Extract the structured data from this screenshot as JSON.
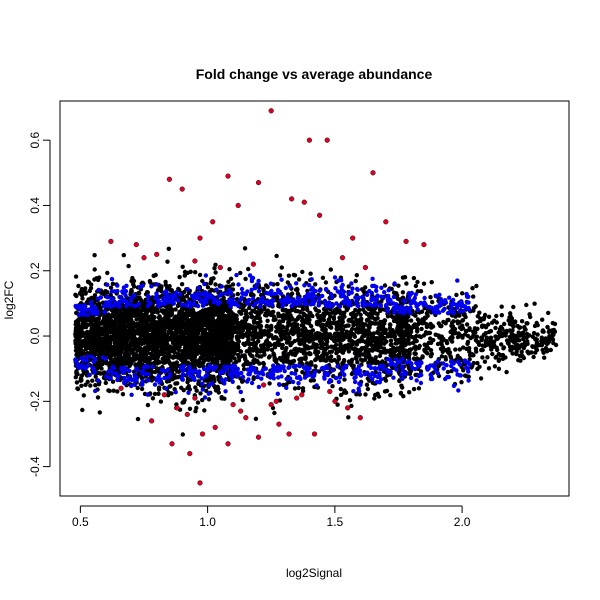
{
  "chart_data": {
    "type": "scatter",
    "title": "Fold change vs average abundance",
    "xlabel": "log2Signal",
    "ylabel": "log2FC",
    "xlim": [
      0.42,
      2.42
    ],
    "ylim": [
      -0.49,
      0.72
    ],
    "xticks": [
      0.5,
      1.0,
      1.5,
      2.0
    ],
    "xtick_labels": [
      "0.5",
      "1.0",
      "1.5",
      "2.0"
    ],
    "yticks": [
      -0.4,
      -0.2,
      0.0,
      0.2,
      0.4,
      0.6
    ],
    "ytick_labels": [
      "-0.4",
      "-0.2",
      "0.0",
      "0.2",
      "0.4",
      "0.6"
    ],
    "grid": false,
    "legend": "none",
    "colors": {
      "background": "#000000",
      "moderate": "#0000ee",
      "significant": "#dd0022"
    },
    "series": [
      {
        "color": "#dd0022",
        "x": [
          1.25,
          1.4,
          1.47,
          1.2,
          1.65,
          1.08,
          0.85,
          0.9,
          1.33,
          1.38,
          1.12,
          1.02,
          1.44,
          1.7,
          1.78,
          0.62,
          0.72,
          0.97,
          1.57,
          1.85,
          0.8,
          0.95,
          1.18,
          1.53,
          0.75,
          1.05,
          1.62,
          0.66,
          1.22,
          1.48,
          0.83,
          1.27,
          0.88,
          1.1,
          1.35,
          0.92,
          1.15,
          0.78,
          1.03,
          1.28,
          0.98,
          1.42,
          1.55,
          0.86,
          1.2,
          0.93,
          1.08,
          1.32,
          1.5,
          0.97,
          1.13,
          1.37,
          1.6,
          1.25,
          0.95
        ],
        "y": [
          0.69,
          0.6,
          0.6,
          0.47,
          0.5,
          0.49,
          0.48,
          0.45,
          0.42,
          0.41,
          0.4,
          0.35,
          0.37,
          0.35,
          0.29,
          0.29,
          0.28,
          0.3,
          0.3,
          0.28,
          0.25,
          0.23,
          0.22,
          0.24,
          0.24,
          0.21,
          0.21,
          -0.16,
          -0.15,
          -0.17,
          -0.18,
          -0.2,
          -0.22,
          -0.21,
          -0.19,
          -0.24,
          -0.25,
          -0.26,
          -0.28,
          -0.27,
          -0.3,
          -0.3,
          -0.22,
          -0.33,
          -0.31,
          -0.36,
          -0.33,
          -0.3,
          -0.2,
          -0.45,
          -0.23,
          -0.18,
          -0.25,
          -0.21,
          -0.19
        ]
      }
    ]
  }
}
